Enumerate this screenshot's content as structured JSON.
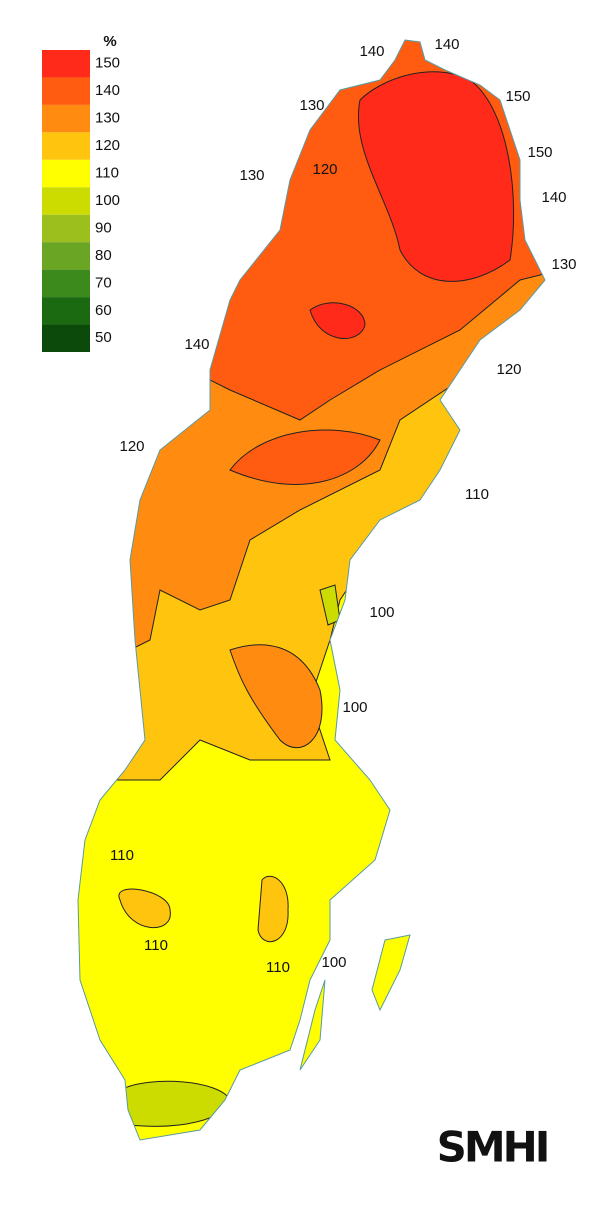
{
  "legend": {
    "unit": "%",
    "items": [
      {
        "value": 150,
        "color": "#ff2a1a"
      },
      {
        "value": 140,
        "color": "#ff5c12"
      },
      {
        "value": 130,
        "color": "#ff8c10"
      },
      {
        "value": 120,
        "color": "#ffc40e"
      },
      {
        "value": 110,
        "color": "#ffff00"
      },
      {
        "value": 100,
        "color": "#ccdc00"
      },
      {
        "value": 90,
        "color": "#9dbf1e"
      },
      {
        "value": 80,
        "color": "#6aa524"
      },
      {
        "value": 70,
        "color": "#3c8a1c"
      },
      {
        "value": 60,
        "color": "#1b6a12"
      },
      {
        "value": 50,
        "color": "#0b4a0a"
      }
    ]
  },
  "contour_labels": [
    140,
    140,
    130,
    150,
    120,
    130,
    150,
    140,
    130,
    140,
    120,
    120,
    110,
    100,
    100,
    110,
    110,
    110,
    100
  ],
  "logo": "SMHI"
}
